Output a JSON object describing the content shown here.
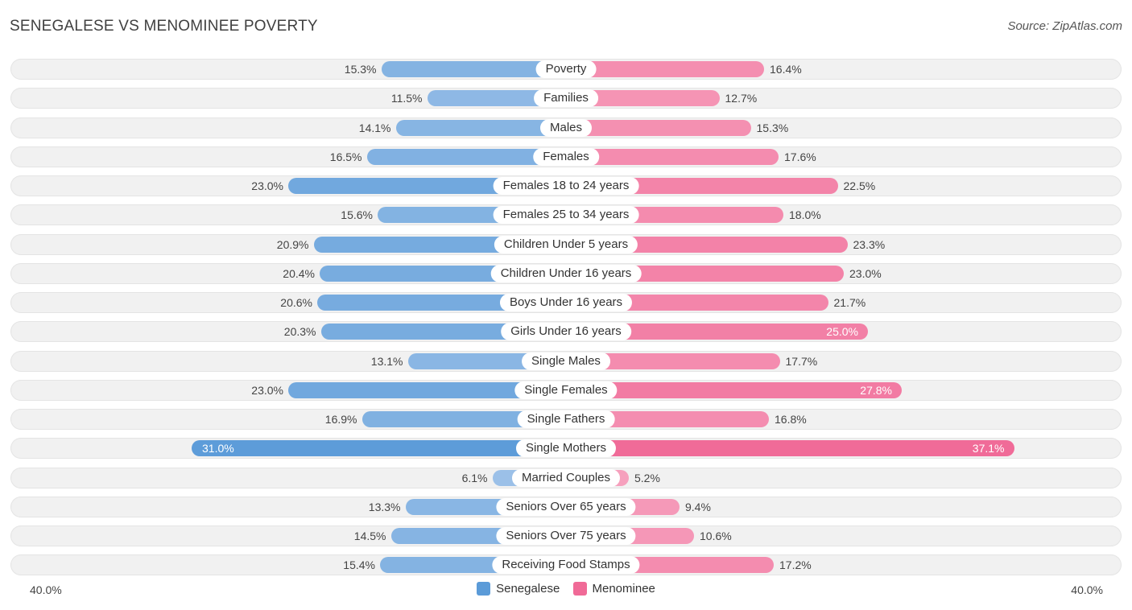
{
  "header": {
    "title": "SENEGALESE VS MENOMINEE POVERTY",
    "source": "Source: ZipAtlas.com"
  },
  "colors": {
    "left": "#5b9bd8",
    "right": "#f06a97",
    "left_light": "#aac9ec",
    "right_light": "#f7a9c3"
  },
  "chart_data": {
    "type": "bar",
    "orientation": "horizontal-diverging",
    "title": "SENEGALESE VS MENOMINEE POVERTY",
    "unit": "%",
    "axis": {
      "left_label": "40.0%",
      "right_label": "40.0%",
      "max": 40
    },
    "categories": [
      "Poverty",
      "Families",
      "Males",
      "Females",
      "Females 18 to 24 years",
      "Females 25 to 34 years",
      "Children Under 5 years",
      "Children Under 16 years",
      "Boys Under 16 years",
      "Girls Under 16 years",
      "Single Males",
      "Single Females",
      "Single Fathers",
      "Single Mothers",
      "Married Couples",
      "Seniors Over 65 years",
      "Seniors Over 75 years",
      "Receiving Food Stamps"
    ],
    "series": [
      {
        "name": "Senegalese",
        "values": [
          15.3,
          11.5,
          14.1,
          16.5,
          23.0,
          15.6,
          20.9,
          20.4,
          20.6,
          20.3,
          13.1,
          23.0,
          16.9,
          31.0,
          6.1,
          13.3,
          14.5,
          15.4
        ],
        "labels": [
          "15.3%",
          "11.5%",
          "14.1%",
          "16.5%",
          "23.0%",
          "15.6%",
          "20.9%",
          "20.4%",
          "20.6%",
          "20.3%",
          "13.1%",
          "23.0%",
          "16.9%",
          "31.0%",
          "6.1%",
          "13.3%",
          "14.5%",
          "15.4%"
        ]
      },
      {
        "name": "Menominee",
        "values": [
          16.4,
          12.7,
          15.3,
          17.6,
          22.5,
          18.0,
          23.3,
          23.0,
          21.7,
          25.0,
          17.7,
          27.8,
          16.8,
          37.1,
          5.2,
          9.4,
          10.6,
          17.2
        ],
        "labels": [
          "16.4%",
          "12.7%",
          "15.3%",
          "17.6%",
          "22.5%",
          "18.0%",
          "23.3%",
          "23.0%",
          "21.7%",
          "25.0%",
          "17.7%",
          "27.8%",
          "16.8%",
          "37.1%",
          "5.2%",
          "9.4%",
          "10.6%",
          "17.2%"
        ]
      }
    ],
    "legend": [
      "Senegalese",
      "Menominee"
    ],
    "legend_position": "bottom-center"
  }
}
